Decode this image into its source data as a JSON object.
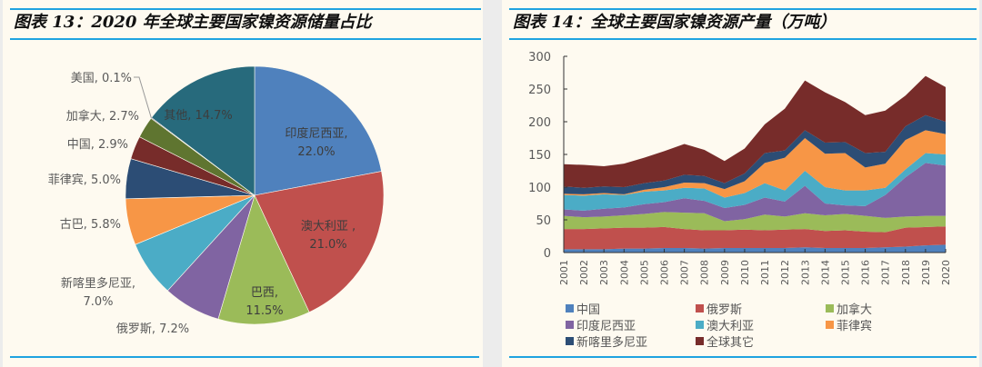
{
  "left": {
    "title": "图表 13：2020 年全球主要国家镍资源储量占比"
  },
  "right": {
    "title": "图表 14：全球主要国家镍资源产量（万吨）"
  },
  "chart_data": [
    {
      "type": "pie",
      "title": "图表 13：2020 年全球主要国家镍资源储量占比",
      "start_angle": "12 o'clock, clockwise",
      "slices": [
        {
          "label": "印度尼西亚",
          "value": 22.0,
          "text": "印度尼西亚,",
          "pct": "22.0%",
          "color": "#4f81bd"
        },
        {
          "label": "澳大利亚",
          "value": 21.0,
          "text": "澳大利亚 ,",
          "pct": "21.0%",
          "color": "#c0504d"
        },
        {
          "label": "巴西",
          "value": 11.5,
          "text": "巴西,",
          "pct": "11.5%",
          "color": "#9bbb59"
        },
        {
          "label": "俄罗斯",
          "value": 7.2,
          "text": "俄罗斯, 7.2%",
          "pct": "",
          "color": "#8064a2"
        },
        {
          "label": "新喀里多尼亚",
          "value": 7.0,
          "text": "新喀里多尼亚,",
          "pct": "7.0%",
          "color": "#4bacc6"
        },
        {
          "label": "古巴",
          "value": 5.8,
          "text": "古巴, 5.8%",
          "pct": "",
          "color": "#f79646"
        },
        {
          "label": "菲律宾",
          "value": 5.0,
          "text": "菲律宾, 5.0%",
          "pct": "",
          "color": "#2c4d75"
        },
        {
          "label": "中国",
          "value": 2.9,
          "text": "中国, 2.9%",
          "pct": "",
          "color": "#772c2a"
        },
        {
          "label": "加拿大",
          "value": 2.7,
          "text": "加拿大, 2.7%",
          "pct": "",
          "color": "#5f7530"
        },
        {
          "label": "美国",
          "value": 0.1,
          "text": "美国, 0.1%",
          "pct": "",
          "color": "#4d3b62"
        },
        {
          "label": "其他",
          "value": 14.7,
          "text": "其他, 14.7%",
          "pct": "",
          "color": "#276a7c"
        }
      ]
    },
    {
      "type": "area",
      "stacked": true,
      "title": "图表 14：全球主要国家镍资源产量（万吨）",
      "xlabel": "",
      "ylabel": "",
      "ylim": [
        0,
        300
      ],
      "yticks": [
        0,
        50,
        100,
        150,
        200,
        250,
        300
      ],
      "grid": false,
      "legend_position": "bottom",
      "x": [
        "2001",
        "2002",
        "2003",
        "2004",
        "2005",
        "2006",
        "2007",
        "2008",
        "2009",
        "2010",
        "2011",
        "2012",
        "2013",
        "2014",
        "2015",
        "2016",
        "2017",
        "2018",
        "2019",
        "2020"
      ],
      "series": [
        {
          "name": "中国",
          "color": "#4f81bd",
          "values": [
            5,
            5,
            5,
            6,
            6,
            7,
            7,
            6,
            7,
            7,
            7,
            7,
            8,
            7,
            7,
            7,
            8,
            9,
            11,
            12
          ]
        },
        {
          "name": "俄罗斯",
          "color": "#c0504d",
          "values": [
            31,
            31,
            32,
            32,
            32,
            32,
            29,
            28,
            27,
            28,
            27,
            28,
            28,
            26,
            27,
            25,
            23,
            29,
            28,
            28
          ]
        },
        {
          "name": "加拿大",
          "color": "#9bbb59",
          "values": [
            20,
            18,
            18,
            19,
            21,
            23,
            25,
            26,
            14,
            16,
            24,
            20,
            24,
            24,
            25,
            24,
            22,
            17,
            17,
            16
          ]
        },
        {
          "name": "印度尼西亚",
          "color": "#8064a2",
          "values": [
            10,
            10,
            12,
            12,
            15,
            15,
            22,
            19,
            20,
            22,
            26,
            23,
            42,
            18,
            13,
            15,
            35,
            60,
            81,
            77
          ]
        },
        {
          "name": "澳大利亚",
          "color": "#4bacc6",
          "values": [
            22,
            23,
            22,
            19,
            19,
            18,
            16,
            19,
            16,
            18,
            22,
            17,
            23,
            25,
            23,
            24,
            11,
            12,
            15,
            17
          ]
        },
        {
          "name": "菲律宾",
          "color": "#f79646",
          "values": [
            2,
            2,
            2,
            1,
            3,
            5,
            8,
            8,
            13,
            18,
            31,
            50,
            50,
            51,
            57,
            35,
            37,
            45,
            35,
            31
          ]
        },
        {
          "name": "新喀里多尼亚",
          "color": "#2c4d75",
          "values": [
            11,
            10,
            10,
            11,
            10,
            10,
            12,
            11,
            9,
            12,
            15,
            11,
            12,
            17,
            17,
            22,
            18,
            21,
            23,
            19
          ]
        },
        {
          "name": "全球其它",
          "color": "#772c2a",
          "values": [
            34,
            35,
            31,
            36,
            39,
            45,
            47,
            40,
            34,
            38,
            44,
            64,
            76,
            77,
            61,
            58,
            63,
            47,
            60,
            53
          ]
        }
      ]
    }
  ]
}
